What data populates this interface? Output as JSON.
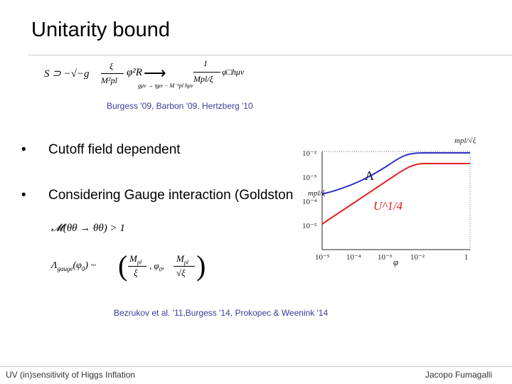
{
  "slide": {
    "title": "Unitarity bound",
    "citation_top": "Burgess '09, Barbon '09, Hertzberg '10",
    "bullets": [
      "Cutoff field dependent",
      "Considering Gauge interaction (Goldston"
    ],
    "citation_bottom": "Bezrukov et al. '11,Burgess '14, Prokopec & Weenink '14"
  },
  "equations": {
    "action_lhs": "S ⊃ −√−g",
    "action_frac_num": "ξ",
    "action_frac_den": "M²pl",
    "action_rhs": "φ²R",
    "arrow_sub": "gμν → ημν − M⁻¹pl hμν",
    "result_num": "1",
    "result_den": "Mpl/ξ",
    "result_tail": "φ□hμν",
    "unitarity": "𝓜(θθ → θθ) > 1",
    "lambda_gauge": "Λgauge(φ₀) ~ ( Mpl/ξ , φ₀ , Mpl/√ξ )"
  },
  "chart_data": {
    "type": "line",
    "xlabel": "φ",
    "xscale": "log",
    "yscale": "log",
    "x_ticks": [
      "10⁻⁵",
      "10⁻⁴",
      "10⁻³",
      "10⁻²",
      "1"
    ],
    "y_ticks": [
      "10⁻²",
      "10⁻³",
      "10⁻⁴",
      "10⁻⁵"
    ],
    "annotations": [
      "mpl/√ξ",
      "Λ",
      "mpl/ξ",
      "U^1/4"
    ],
    "series": [
      {
        "name": "Λ",
        "color": "#3030c8"
      },
      {
        "name": "U^1/4",
        "color": "#e02020"
      }
    ]
  },
  "footer": {
    "left": "UV (in)sensitivity of Higgs Inflation",
    "right": "Jacopo Fumagalli"
  }
}
